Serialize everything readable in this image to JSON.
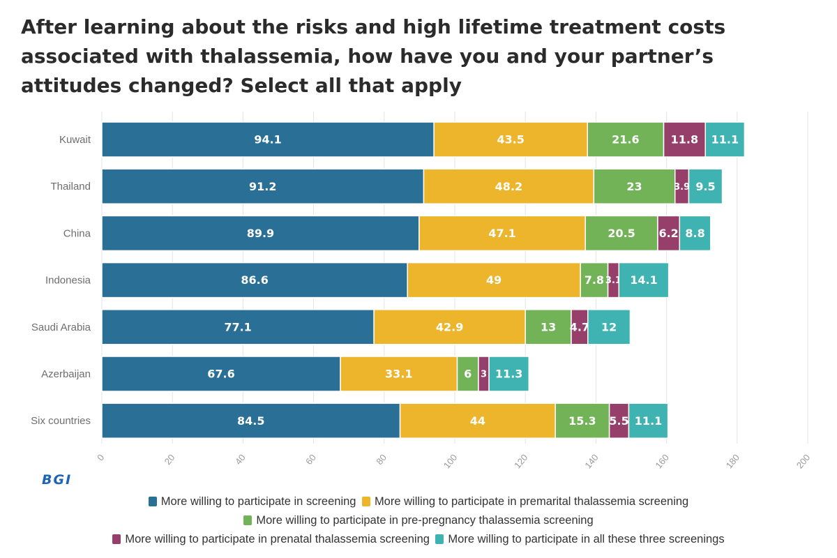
{
  "title": "After learning about the risks and high lifetime treatment costs associated with thalassemia, how have you and your partner’s attitudes changed? Select all that apply",
  "logo": "BGI",
  "chart_data": {
    "type": "bar",
    "orientation": "horizontal",
    "stacked": true,
    "categories": [
      "Kuwait",
      "Thailand",
      "China",
      "Indonesia",
      "Saudi Arabia",
      "Azerbaijan",
      "Six countries"
    ],
    "series": [
      {
        "name": "More willing to participate in screening",
        "color": "#2a6f96",
        "values": [
          94.1,
          91.2,
          89.9,
          86.6,
          77.1,
          67.6,
          84.5
        ],
        "labels": [
          "94.1",
          "91.2",
          "89.9",
          "86.6",
          "77.1",
          "67.6",
          "84.5"
        ]
      },
      {
        "name": "More willing to participate in premarital thalassemia screening",
        "color": "#ecb52c",
        "values": [
          43.5,
          48.2,
          47.1,
          49,
          42.9,
          33.1,
          44
        ],
        "labels": [
          "43.5",
          "48.2",
          "47.1",
          "49",
          "42.9",
          "33.1",
          "44"
        ]
      },
      {
        "name": "More willing to participate in pre-pregnancy thalassemia screening",
        "color": "#73b357",
        "values": [
          21.6,
          23,
          20.5,
          7.8,
          13,
          6,
          15.3
        ],
        "labels": [
          "21.6",
          "23",
          "20.5",
          "7.8",
          "13",
          "6",
          "15.3"
        ]
      },
      {
        "name": "More willing to participate in prenatal thalassemia screening",
        "color": "#963f6b",
        "values": [
          11.8,
          3.9,
          6.2,
          3.1,
          4.7,
          3,
          5.5
        ],
        "labels": [
          "11.8",
          "3.9",
          "6.2",
          "3.1",
          "4.7",
          "3",
          "5.5"
        ]
      },
      {
        "name": "More willing to participate in all these three screenings",
        "color": "#3fb3b1",
        "values": [
          11.1,
          9.5,
          8.8,
          14.1,
          12,
          11.3,
          11.1
        ],
        "labels": [
          "11.1",
          "9.5",
          "8.8",
          "14.1",
          "12",
          "11.3",
          "11.1"
        ]
      }
    ],
    "xlim": [
      0,
      200
    ],
    "xticks": [
      0,
      20,
      40,
      60,
      80,
      100,
      120,
      140,
      160,
      180,
      200
    ],
    "grid": "vertical",
    "legend_position": "bottom"
  }
}
